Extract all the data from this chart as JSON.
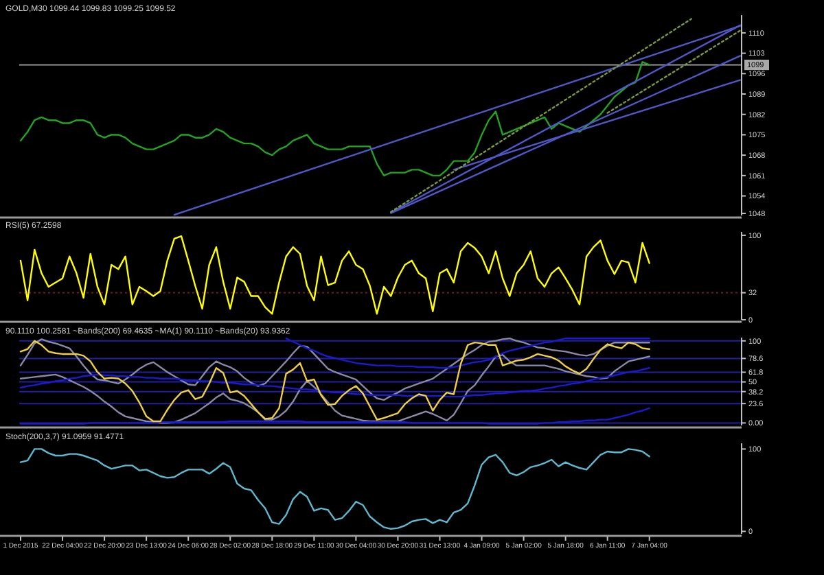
{
  "chart_data": [
    {
      "type": "line",
      "title": "GOLD,M30 1099.44 1099.83 1099.25 1099.52",
      "ylim": [
        1047.3,
        1116.1
      ],
      "tick_labels": "y",
      "categories": [
        null,
        null,
        null,
        null,
        null,
        null,
        null,
        null,
        null,
        null,
        null,
        null,
        null,
        null,
        null,
        null,
        null,
        null,
        null,
        null,
        null,
        null,
        null,
        null,
        null,
        null,
        null,
        null,
        null,
        null,
        null,
        null,
        null,
        null,
        null,
        null,
        null,
        null,
        null,
        null,
        null,
        null,
        null,
        null,
        null,
        null,
        null,
        null,
        null,
        null,
        null,
        null,
        null,
        null,
        null,
        null,
        null,
        null,
        null,
        null,
        null,
        null,
        null,
        null,
        null,
        null,
        null,
        null,
        null,
        null,
        null,
        null,
        null,
        null,
        null,
        null,
        null,
        null,
        null,
        null,
        null,
        null,
        null,
        null,
        null,
        null,
        null,
        null,
        null,
        null,
        null,
        null,
        null,
        null,
        null,
        null,
        null,
        null,
        null,
        null,
        null,
        null,
        null,
        null
      ],
      "yticks": [
        1110,
        1103,
        1096,
        1089,
        1082,
        1075,
        1068,
        1061,
        1054,
        1048
      ],
      "ref_lines": [
        {
          "axis": "y",
          "value": 1099,
          "label": "1099",
          "color": "#a8a8a8"
        }
      ],
      "series": [
        {
          "color": "#22a322",
          "values": [
            1073,
            1076,
            1080,
            1081,
            1080,
            1080,
            1079,
            1079,
            1080,
            1080,
            1079,
            1075,
            1074,
            1075,
            1075,
            1074,
            1072,
            1071,
            1070,
            1070,
            1071,
            1072,
            1073,
            1075,
            1075,
            1074,
            1074,
            1075,
            1077,
            1076,
            1074,
            1073,
            1072,
            1072,
            1071,
            1069,
            1068,
            1070,
            1071,
            1073,
            1074,
            1075,
            1072,
            1071,
            1070,
            1070,
            1070,
            1071,
            1071,
            1071,
            1071,
            1065,
            1061,
            1062,
            1062,
            1062,
            1063,
            1063,
            1062,
            1061,
            1061,
            1063,
            1066,
            1066,
            1066,
            1069,
            1075,
            1080,
            1083,
            1075,
            1076,
            1077,
            1078,
            1079,
            1080,
            1081,
            1077,
            1079,
            1078,
            1077,
            1076,
            1078,
            1080,
            1082,
            1085,
            1088,
            1090,
            1092,
            1093,
            1100,
            1099,
            null,
            null,
            null,
            null,
            null,
            null,
            null,
            null,
            null,
            null,
            null,
            null,
            null
          ]
        },
        {
          "color": "#5058c8",
          "values": [
            null,
            null,
            null,
            null,
            null,
            null,
            null,
            null,
            null,
            null,
            null,
            null,
            null,
            null,
            null,
            null,
            null,
            null,
            null,
            null,
            null,
            null,
            1047.5,
            null,
            null,
            null,
            null,
            null,
            null,
            null,
            null,
            null,
            null,
            null,
            null,
            null,
            null,
            null,
            null,
            null,
            null,
            null,
            null,
            null,
            null,
            null,
            null,
            null,
            null,
            null,
            null,
            null,
            null,
            null,
            null,
            null,
            null,
            null,
            null,
            null,
            null,
            null,
            null,
            null,
            null,
            null,
            null,
            null,
            null,
            null,
            null,
            null,
            null,
            null,
            null,
            null,
            null,
            null,
            null,
            null,
            null,
            null,
            null,
            null,
            null,
            null,
            null,
            null,
            null,
            null,
            null,
            null,
            null,
            null,
            null,
            null,
            null,
            null,
            null,
            null,
            null,
            null,
            null,
            1112.4
          ]
        },
        {
          "color": "#5058c8",
          "values": [
            null,
            null,
            null,
            null,
            null,
            null,
            null,
            null,
            null,
            null,
            null,
            null,
            null,
            null,
            null,
            null,
            null,
            null,
            null,
            null,
            null,
            null,
            null,
            null,
            null,
            null,
            null,
            null,
            null,
            null,
            null,
            null,
            null,
            null,
            null,
            null,
            null,
            null,
            null,
            null,
            null,
            null,
            null,
            null,
            null,
            null,
            null,
            null,
            null,
            null,
            null,
            null,
            null,
            1048.3,
            null,
            null,
            null,
            null,
            null,
            null,
            null,
            null,
            null,
            null,
            null,
            null,
            null,
            null,
            null,
            null,
            null,
            null,
            null,
            null,
            null,
            null,
            null,
            null,
            null,
            null,
            null,
            null,
            null,
            null,
            null,
            null,
            null,
            null,
            null,
            null,
            null,
            null,
            null,
            null,
            null,
            null,
            null,
            null,
            null,
            null,
            null,
            null,
            null,
            1112.6
          ]
        },
        {
          "color": "#5058c8",
          "values": [
            null,
            null,
            null,
            null,
            null,
            null,
            null,
            null,
            null,
            null,
            null,
            null,
            null,
            null,
            null,
            null,
            null,
            null,
            null,
            null,
            null,
            null,
            null,
            null,
            null,
            null,
            null,
            null,
            null,
            null,
            null,
            null,
            null,
            null,
            null,
            null,
            null,
            null,
            null,
            null,
            null,
            null,
            null,
            null,
            null,
            null,
            null,
            null,
            null,
            null,
            null,
            null,
            null,
            1048.1,
            null,
            null,
            null,
            null,
            null,
            null,
            null,
            null,
            null,
            null,
            null,
            null,
            null,
            null,
            null,
            null,
            null,
            null,
            null,
            null,
            null,
            null,
            null,
            null,
            null,
            null,
            null,
            null,
            null,
            null,
            null,
            null,
            null,
            null,
            null,
            null,
            null,
            null,
            null,
            null,
            null,
            null,
            null,
            null,
            null,
            null,
            null,
            null,
            null,
            1102.1
          ]
        },
        {
          "color": "#5058c8",
          "values": [
            null,
            null,
            null,
            null,
            null,
            null,
            null,
            null,
            null,
            null,
            null,
            null,
            null,
            null,
            null,
            null,
            null,
            null,
            null,
            null,
            null,
            null,
            null,
            null,
            null,
            null,
            null,
            null,
            null,
            null,
            null,
            null,
            null,
            null,
            null,
            null,
            null,
            null,
            null,
            null,
            null,
            null,
            null,
            null,
            null,
            null,
            null,
            null,
            null,
            null,
            null,
            null,
            null,
            null,
            null,
            null,
            null,
            null,
            null,
            null,
            null,
            null,
            1063.0,
            null,
            null,
            null,
            null,
            null,
            null,
            null,
            null,
            null,
            null,
            null,
            null,
            null,
            null,
            null,
            null,
            null,
            null,
            null,
            null,
            null,
            null,
            null,
            null,
            null,
            null,
            null,
            null,
            null,
            null,
            null,
            null,
            null,
            null,
            null,
            null,
            null,
            null,
            null,
            null,
            1093.8
          ]
        },
        {
          "color": "#7a9a40",
          "line_style": "dotted",
          "values": [
            null,
            null,
            null,
            null,
            null,
            null,
            null,
            null,
            null,
            null,
            null,
            null,
            null,
            null,
            null,
            null,
            null,
            null,
            null,
            null,
            null,
            null,
            null,
            null,
            null,
            null,
            null,
            null,
            null,
            null,
            null,
            null,
            null,
            null,
            null,
            null,
            null,
            null,
            null,
            null,
            null,
            null,
            null,
            null,
            null,
            null,
            null,
            null,
            null,
            null,
            null,
            null,
            null,
            1048.5,
            null,
            null,
            null,
            null,
            null,
            null,
            null,
            null,
            null,
            null,
            null,
            null,
            null,
            null,
            null,
            null,
            null,
            null,
            null,
            null,
            null,
            null,
            null,
            null,
            null,
            null,
            null,
            null,
            null,
            null,
            null,
            null,
            null,
            null,
            null,
            null,
            null,
            null,
            null,
            null,
            null,
            null,
            1114.8,
            null,
            null,
            null,
            null,
            null,
            null,
            null
          ]
        },
        {
          "color": "#7a9a40",
          "line_style": "dotted",
          "values": [
            null,
            null,
            null,
            null,
            null,
            null,
            null,
            null,
            null,
            null,
            null,
            null,
            null,
            null,
            null,
            null,
            null,
            null,
            null,
            null,
            null,
            null,
            null,
            null,
            null,
            null,
            null,
            null,
            null,
            null,
            null,
            null,
            null,
            null,
            null,
            null,
            null,
            null,
            null,
            null,
            null,
            null,
            null,
            null,
            null,
            null,
            null,
            null,
            null,
            null,
            null,
            null,
            null,
            null,
            null,
            null,
            null,
            null,
            null,
            null,
            null,
            null,
            null,
            null,
            null,
            null,
            null,
            null,
            null,
            null,
            null,
            null,
            null,
            null,
            null,
            null,
            null,
            null,
            null,
            null,
            null,
            null,
            null,
            null,
            1082.5,
            null,
            null,
            null,
            null,
            null,
            null,
            null,
            null,
            null,
            null,
            null,
            null,
            null,
            null,
            null,
            null,
            null,
            null,
            1110.8
          ]
        }
      ]
    },
    {
      "type": "line",
      "title": "RSI(5) 67.2598",
      "ylim": [
        0,
        104
      ],
      "yticks": [
        100,
        32,
        0
      ],
      "tick_labels": "y",
      "categories": [
        null,
        null,
        null,
        null,
        null,
        null,
        null,
        null,
        null,
        null,
        null,
        null,
        null,
        null,
        null,
        null,
        null,
        null,
        null,
        null,
        null,
        null,
        null,
        null,
        null,
        null,
        null,
        null,
        null,
        null,
        null,
        null,
        null,
        null,
        null,
        null,
        null,
        null,
        null,
        null,
        null,
        null,
        null,
        null,
        null,
        null,
        null,
        null,
        null,
        null,
        null,
        null,
        null,
        null,
        null,
        null,
        null,
        null,
        null,
        null,
        null,
        null,
        null,
        null,
        null,
        null,
        null,
        null,
        null,
        null,
        null,
        null,
        null,
        null,
        null,
        null,
        null,
        null,
        null,
        null,
        null,
        null,
        null,
        null,
        null,
        null,
        null,
        null,
        null,
        null,
        null,
        null,
        null,
        null,
        null,
        null,
        null,
        null,
        null,
        null,
        null,
        null,
        null,
        null
      ],
      "ref_lines": [
        {
          "axis": "y",
          "value": 32,
          "color": "#7a1e1e",
          "line_style": "dotted"
        }
      ],
      "series": [
        {
          "color": "#ffff00",
          "values": [
            70,
            23,
            83,
            55,
            39,
            44,
            49,
            75,
            55,
            26,
            78,
            39,
            18,
            65,
            60,
            75,
            18,
            39,
            34,
            28,
            34,
            70,
            96,
            99,
            70,
            40,
            13,
            65,
            86,
            45,
            13,
            50,
            45,
            28,
            28,
            15,
            7,
            44,
            75,
            86,
            78,
            40,
            23,
            75,
            41,
            44,
            70,
            81,
            65,
            60,
            40,
            7,
            39,
            28,
            50,
            65,
            70,
            55,
            49,
            10,
            55,
            60,
            44,
            81,
            91,
            85,
            75,
            55,
            81,
            49,
            28,
            55,
            65,
            81,
            49,
            39,
            55,
            62,
            49,
            35,
            18,
            75,
            86,
            94,
            70,
            54,
            70,
            68,
            44,
            91,
            67,
            null,
            null,
            null,
            null,
            null,
            null,
            null,
            null,
            null,
            null,
            null,
            null,
            null
          ]
        }
      ]
    },
    {
      "type": "line",
      "title": "90.1110 100.2581 ~Bands(200) 69.4635 ~MA(1) 90.1110 ~Bands(20) 93.9362",
      "ylim": [
        -3,
        104
      ],
      "tick_labels": "y",
      "grid": "y",
      "categories": [
        null,
        null,
        null,
        null,
        null,
        null,
        null,
        null,
        null,
        null,
        null,
        null,
        null,
        null,
        null,
        null,
        null,
        null,
        null,
        null,
        null,
        null,
        null,
        null,
        null,
        null,
        null,
        null,
        null,
        null,
        null,
        null,
        null,
        null,
        null,
        null,
        null,
        null,
        null,
        null,
        null,
        null,
        null,
        null,
        null,
        null,
        null,
        null,
        null,
        null,
        null,
        null,
        null,
        null,
        null,
        null,
        null,
        null,
        null,
        null,
        null,
        null,
        null,
        null,
        null,
        null,
        null,
        null,
        null,
        null,
        null,
        null,
        null,
        null,
        null,
        null,
        null,
        null,
        null,
        null,
        null,
        null,
        null,
        null,
        null,
        null,
        null,
        null,
        null,
        null,
        null,
        null,
        null,
        null,
        null,
        null,
        null,
        null,
        null,
        null,
        null,
        null,
        null,
        null
      ],
      "yticks": [
        100,
        78.6,
        61.8,
        50,
        38.2,
        23.6,
        {
          "value": 0,
          "label": "0.00"
        }
      ],
      "series": [
        {
          "color": "#8a8aa8",
          "values": [
            70,
            83,
            97,
            102,
            99,
            97,
            94,
            91,
            81,
            70,
            60,
            53,
            52,
            50,
            48,
            53,
            59,
            66,
            71,
            74,
            68,
            62,
            57,
            52,
            47,
            46,
            57,
            68,
            75,
            71,
            68,
            63,
            55,
            49,
            45,
            48,
            57,
            66,
            75,
            85,
            94,
            93,
            84,
            75,
            66,
            62,
            59,
            56,
            53,
            45,
            37,
            30,
            28,
            33,
            37,
            42,
            45,
            48,
            51,
            54,
            60,
            66,
            72,
            78,
            84,
            89,
            95,
            99,
            100,
            102,
            103,
            100,
            98,
            95,
            92,
            91,
            89,
            88,
            87,
            85,
            83,
            82,
            84,
            89,
            94,
            98,
            98,
            98,
            98,
            98,
            98,
            null,
            null,
            null,
            null,
            null,
            null,
            null,
            null,
            null,
            null,
            null,
            null,
            null
          ]
        },
        {
          "color": "#8a8aa8",
          "values": [
            54,
            55,
            56,
            57,
            58,
            59,
            56,
            52,
            48,
            44,
            39,
            33,
            26,
            20,
            13,
            8,
            6,
            4,
            2,
            1,
            0,
            0,
            1,
            4,
            8,
            12,
            18,
            24,
            31,
            36,
            29,
            27,
            24,
            19,
            13,
            4,
            4,
            8,
            15,
            26,
            41,
            51,
            44,
            35,
            25,
            15,
            9,
            7,
            5,
            3,
            2,
            2,
            2,
            2,
            2,
            5,
            8,
            11,
            14,
            11,
            7,
            3,
            10,
            24,
            39,
            46,
            58,
            69,
            81,
            83,
            75,
            70,
            70,
            70,
            70,
            70,
            68,
            66,
            63,
            61,
            59,
            57,
            56,
            54,
            55,
            63,
            69,
            75,
            77,
            79,
            81,
            null,
            null,
            null,
            null,
            null,
            null,
            null,
            null,
            null,
            null,
            null,
            null,
            null
          ]
        },
        {
          "color": "#1a1ad0",
          "values": [
            null,
            null,
            null,
            null,
            null,
            null,
            null,
            null,
            null,
            null,
            null,
            null,
            null,
            null,
            null,
            null,
            null,
            null,
            null,
            null,
            null,
            null,
            null,
            null,
            null,
            null,
            null,
            null,
            null,
            null,
            null,
            null,
            null,
            null,
            null,
            null,
            null,
            null,
            103,
            99,
            95,
            91,
            88,
            84,
            81,
            79,
            77,
            75,
            73,
            72,
            71,
            70,
            70,
            70,
            69,
            69,
            69,
            68,
            68,
            68,
            67,
            67,
            68,
            70,
            72,
            74,
            75,
            77,
            81,
            85,
            88,
            90,
            92,
            94,
            96,
            98,
            99,
            101,
            103,
            103,
            103,
            103,
            103,
            103,
            103,
            103,
            103,
            103,
            103,
            103,
            103,
            null,
            null,
            null,
            null,
            null,
            null,
            null,
            null,
            null,
            null,
            null,
            null,
            null
          ]
        },
        {
          "color": "#1a1ad0",
          "values": [
            43,
            45,
            46,
            48,
            49,
            51,
            52,
            54,
            55,
            57,
            58,
            59,
            58,
            58,
            57,
            57,
            56,
            56,
            55,
            55,
            54,
            54,
            54,
            53,
            52,
            52,
            51,
            51,
            50,
            49,
            49,
            48,
            47,
            47,
            46,
            45,
            45,
            44,
            43,
            42,
            41,
            41,
            40,
            39,
            38,
            37,
            37,
            36,
            35,
            35,
            34,
            34,
            34,
            34,
            34,
            33,
            33,
            33,
            33,
            33,
            33,
            32,
            32,
            32,
            33,
            34,
            34,
            35,
            36,
            36,
            37,
            38,
            39,
            39,
            40,
            42,
            43,
            45,
            46,
            48,
            49,
            51,
            53,
            55,
            56,
            58,
            60,
            62,
            63,
            65,
            67,
            null,
            null,
            null,
            null,
            null,
            null,
            null,
            null,
            null,
            null,
            null,
            null,
            null
          ]
        },
        {
          "color": "#1a1ad0",
          "values": [
            -1,
            -1,
            -1,
            -1,
            -1,
            -1,
            -1,
            -1,
            -1,
            -1,
            0,
            0,
            0,
            0,
            0,
            0,
            0,
            0,
            0,
            0,
            1,
            1,
            1,
            1,
            1,
            1,
            1,
            1,
            1,
            1,
            2,
            2,
            2,
            2,
            2,
            2,
            2,
            2,
            2,
            2,
            2,
            1,
            1,
            1,
            1,
            1,
            1,
            1,
            1,
            1,
            1,
            1,
            1,
            1,
            1,
            1,
            0,
            0,
            0,
            0,
            0,
            0,
            0,
            0,
            0,
            0,
            0,
            -1,
            -1,
            -1,
            -1,
            -1,
            -1,
            -1,
            -1,
            0,
            0,
            1,
            1,
            2,
            2,
            3,
            3,
            4,
            4,
            6,
            8,
            10,
            13,
            15,
            18,
            null,
            null,
            null,
            null,
            null,
            null,
            null,
            null,
            null,
            null,
            null,
            null,
            null
          ]
        },
        {
          "color": "#f0d040",
          "values": [
            87,
            90,
            100,
            95,
            87,
            85,
            84,
            84,
            84,
            82,
            75,
            62,
            54,
            55,
            54,
            48,
            39,
            25,
            8,
            2,
            2,
            16,
            28,
            37,
            40,
            29,
            32,
            48,
            67,
            61,
            37,
            39,
            33,
            23,
            13,
            5,
            6,
            18,
            60,
            65,
            73,
            51,
            53,
            34,
            22,
            23,
            33,
            40,
            45,
            36,
            20,
            4,
            6,
            9,
            12,
            23,
            30,
            35,
            33,
            15,
            28,
            37,
            35,
            72,
            95,
            98,
            97,
            95,
            95,
            70,
            73,
            76,
            77,
            80,
            84,
            82,
            80,
            76,
            69,
            64,
            60,
            66,
            78,
            89,
            96,
            93,
            91,
            98,
            96,
            91,
            90,
            null,
            null,
            null,
            null,
            null,
            null,
            null,
            null,
            null,
            null,
            null,
            null,
            null
          ]
        }
      ]
    },
    {
      "type": "line",
      "title": "Stoch(200,3,7) 91.0959 91.4771",
      "ylim": [
        -3,
        107
      ],
      "yticks": [
        100,
        0
      ],
      "categories": [
        "1 Dec 2015",
        null,
        null,
        null,
        null,
        null,
        "22 Dec 04:00",
        null,
        null,
        null,
        null,
        null,
        "22 Dec 20:00",
        null,
        null,
        null,
        null,
        null,
        "23 Dec 13:00",
        null,
        null,
        null,
        null,
        null,
        "24 Dec 06:00",
        null,
        null,
        null,
        null,
        null,
        "28 Dec 02:00",
        null,
        null,
        null,
        null,
        null,
        "28 Dec 18:00",
        null,
        null,
        null,
        null,
        null,
        "29 Dec 11:00",
        null,
        null,
        null,
        null,
        null,
        "30 Dec 04:00",
        null,
        null,
        null,
        null,
        null,
        "30 Dec 20:00",
        null,
        null,
        null,
        null,
        null,
        "31 Dec 13:00",
        null,
        null,
        null,
        null,
        null,
        "4 Jan 09:00",
        null,
        null,
        null,
        null,
        null,
        "5 Jan 02:00",
        null,
        null,
        null,
        null,
        null,
        "5 Jan 18:00",
        null,
        null,
        null,
        null,
        null,
        "6 Jan 11:00",
        null,
        null,
        null,
        null,
        null,
        "7 Jan 04:00",
        null,
        null,
        null,
        null,
        null,
        null,
        null,
        null,
        null,
        null,
        null,
        null,
        null
      ],
      "series": [
        {
          "color": "#5fb8d0",
          "values": [
            84,
            86,
            100,
            100,
            95,
            92,
            92,
            94,
            94,
            92,
            89,
            86,
            80,
            76,
            78,
            80,
            80,
            74,
            75,
            71,
            67,
            65,
            66,
            71,
            75,
            75,
            75,
            70,
            76,
            83,
            78,
            58,
            52,
            50,
            38,
            28,
            11,
            9,
            20,
            39,
            48,
            42,
            25,
            28,
            26,
            14,
            16,
            25,
            36,
            32,
            18,
            11,
            5,
            3,
            4,
            7,
            12,
            14,
            15,
            10,
            14,
            11,
            23,
            26,
            34,
            56,
            81,
            90,
            93,
            84,
            71,
            68,
            72,
            78,
            80,
            83,
            87,
            79,
            84,
            80,
            77,
            75,
            84,
            93,
            97,
            96,
            96,
            100,
            99,
            97,
            91,
            null,
            null,
            null,
            null,
            null,
            null,
            null,
            null,
            null,
            null,
            null,
            null,
            null
          ]
        }
      ]
    }
  ]
}
